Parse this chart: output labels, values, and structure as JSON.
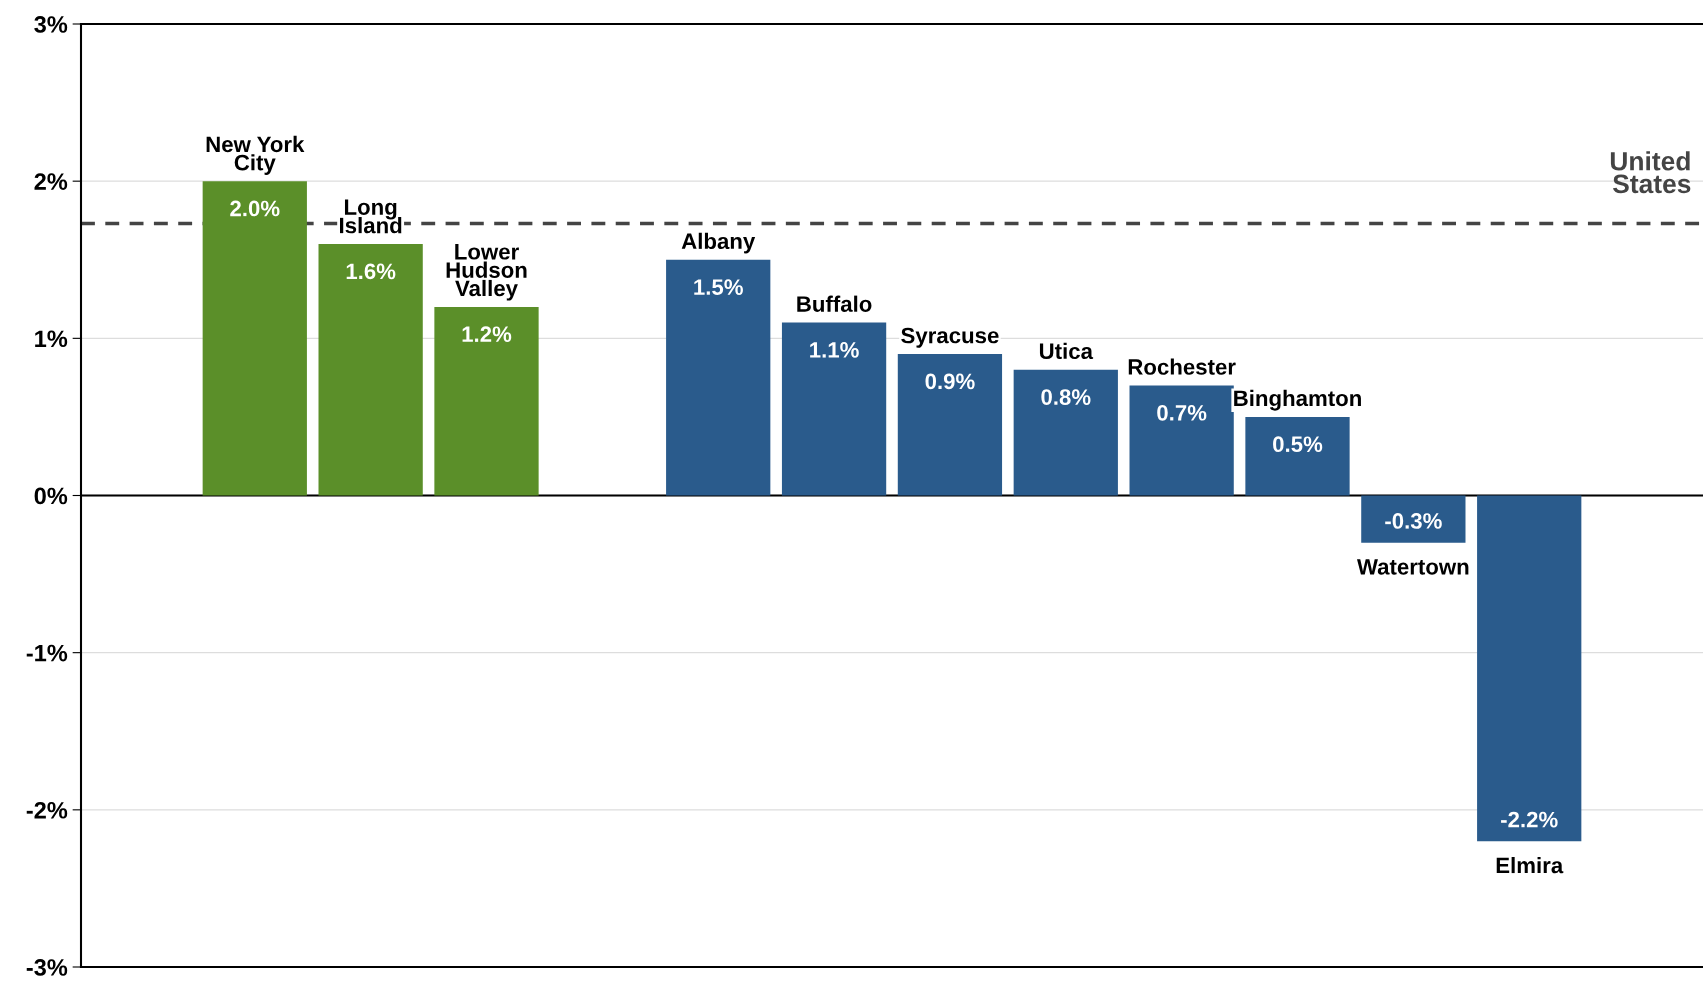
{
  "chart_data": {
    "type": "bar",
    "categories": [
      null,
      "New York\nCity",
      "Long\nIsland",
      "Lower\nHudson\nValley",
      null,
      "Albany",
      "Buffalo",
      "Syracuse",
      "Utica",
      "Rochester",
      "Binghamton",
      "Watertown",
      "Elmira",
      null
    ],
    "values": [
      null,
      2.0,
      1.6,
      1.2,
      null,
      1.5,
      1.1,
      0.9,
      0.8,
      0.7,
      0.5,
      -0.3,
      -2.2,
      null
    ],
    "colors": [
      null,
      "#5b8f29",
      "#5b8f29",
      "#5b8f29",
      null,
      "#2a5b8c",
      "#2a5b8c",
      "#2a5b8c",
      "#2a5b8c",
      "#2a5b8c",
      "#2a5b8c",
      "#2a5b8c",
      "#2a5b8c",
      null
    ],
    "ylim": [
      -3,
      3
    ],
    "yticks": [
      {
        "value": -3,
        "label": "-3%"
      },
      {
        "value": -2,
        "label": "-2%"
      },
      {
        "value": -1,
        "label": "-1%"
      },
      {
        "value": 0,
        "label": "0%"
      },
      {
        "value": 1,
        "label": "1%"
      },
      {
        "value": 2,
        "label": "2%"
      },
      {
        "value": 3,
        "label": "3%"
      }
    ],
    "value_labels": [
      null,
      "2.0%",
      "1.6%",
      "1.2%",
      null,
      "1.5%",
      "1.1%",
      "0.9%",
      "0.8%",
      "0.7%",
      "0.5%",
      "-0.3%",
      "-2.2%",
      null
    ],
    "ref_lines": [
      {
        "axis": "y",
        "value": 1.73,
        "label": "United\nStates",
        "color": "#444444",
        "line_style": "dashed"
      }
    ],
    "grid": "y",
    "tick_labels": "y"
  }
}
